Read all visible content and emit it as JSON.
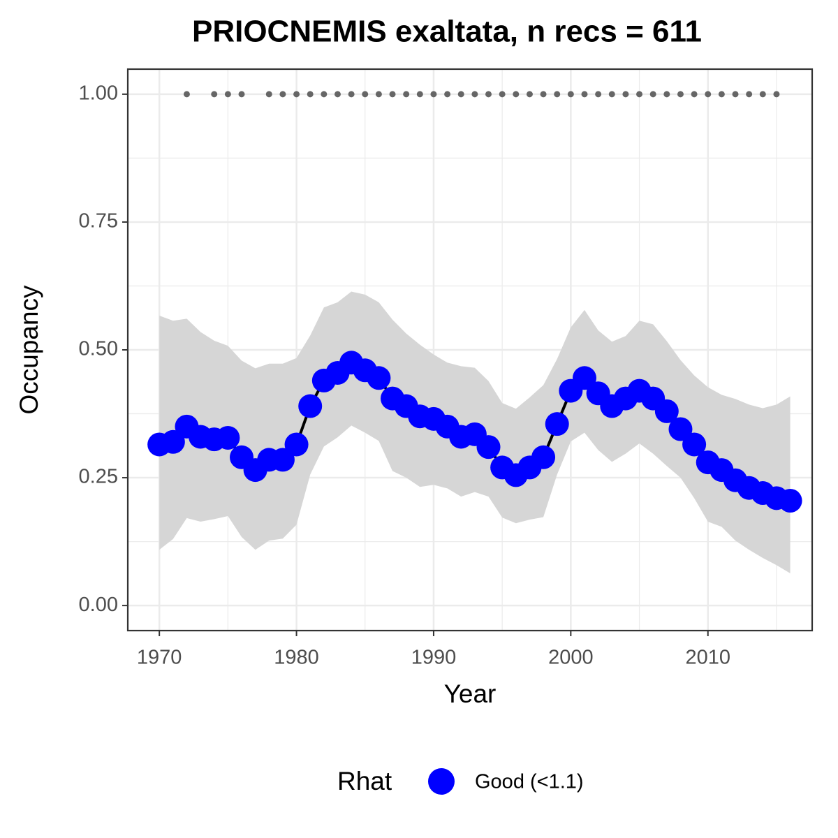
{
  "chart_data": {
    "type": "line",
    "title": "PRIOCNEMIS exaltata, n recs = 611",
    "x_label": "Year",
    "y_label": "Occupancy",
    "legend_title": "Rhat",
    "legend_position": "bottom",
    "grid": true,
    "band_color": "#d6d6d6",
    "line_color": "#000000",
    "x": [
      1970,
      1971,
      1972,
      1973,
      1974,
      1975,
      1976,
      1977,
      1978,
      1979,
      1980,
      1981,
      1982,
      1983,
      1984,
      1985,
      1986,
      1987,
      1988,
      1989,
      1990,
      1991,
      1992,
      1993,
      1994,
      1995,
      1996,
      1997,
      1998,
      1999,
      2000,
      2001,
      2002,
      2003,
      2004,
      2005,
      2006,
      2007,
      2008,
      2009,
      2010,
      2011,
      2012,
      2013,
      2014,
      2015,
      2016
    ],
    "series": [
      {
        "name": "Good (<1.1)",
        "color": "#0000ff",
        "values": [
          0.315,
          0.32,
          0.35,
          0.33,
          0.325,
          0.328,
          0.29,
          0.265,
          0.285,
          0.285,
          0.315,
          0.39,
          0.44,
          0.455,
          0.475,
          0.46,
          0.445,
          0.405,
          0.39,
          0.37,
          0.365,
          0.35,
          0.33,
          0.335,
          0.31,
          0.27,
          0.255,
          0.27,
          0.29,
          0.355,
          0.42,
          0.445,
          0.415,
          0.39,
          0.405,
          0.42,
          0.405,
          0.38,
          0.345,
          0.315,
          0.28,
          0.265,
          0.245,
          0.23,
          0.22,
          0.21,
          0.205
        ],
        "upper": [
          0.567,
          0.557,
          0.561,
          0.535,
          0.518,
          0.508,
          0.479,
          0.464,
          0.473,
          0.473,
          0.484,
          0.528,
          0.583,
          0.593,
          0.614,
          0.608,
          0.593,
          0.559,
          0.532,
          0.51,
          0.491,
          0.475,
          0.468,
          0.465,
          0.439,
          0.396,
          0.385,
          0.407,
          0.431,
          0.482,
          0.544,
          0.578,
          0.538,
          0.516,
          0.527,
          0.557,
          0.55,
          0.517,
          0.48,
          0.45,
          0.427,
          0.412,
          0.404,
          0.393,
          0.386,
          0.393,
          0.409
        ],
        "lower": [
          0.109,
          0.13,
          0.171,
          0.164,
          0.169,
          0.175,
          0.134,
          0.109,
          0.127,
          0.131,
          0.158,
          0.256,
          0.311,
          0.329,
          0.352,
          0.338,
          0.322,
          0.263,
          0.25,
          0.232,
          0.236,
          0.229,
          0.213,
          0.222,
          0.213,
          0.172,
          0.161,
          0.168,
          0.173,
          0.256,
          0.321,
          0.338,
          0.304,
          0.281,
          0.297,
          0.317,
          0.297,
          0.273,
          0.25,
          0.21,
          0.164,
          0.154,
          0.127,
          0.109,
          0.093,
          0.079,
          0.063
        ]
      }
    ],
    "records": {
      "color": "#666666",
      "x": [
        1972,
        1974,
        1975,
        1976,
        1978,
        1979,
        1980,
        1981,
        1982,
        1983,
        1984,
        1985,
        1986,
        1987,
        1988,
        1989,
        1990,
        1991,
        1992,
        1993,
        1994,
        1995,
        1996,
        1997,
        1998,
        1999,
        2000,
        2001,
        2002,
        2003,
        2004,
        2005,
        2006,
        2007,
        2008,
        2009,
        2010,
        2011,
        2012,
        2013,
        2014,
        2015
      ],
      "values": [
        1,
        1,
        1,
        1,
        1,
        1,
        1,
        1,
        1,
        1,
        1,
        1,
        1,
        1,
        1,
        1,
        1,
        1,
        1,
        1,
        1,
        1,
        1,
        1,
        1,
        1,
        1,
        1,
        1,
        1,
        1,
        1,
        1,
        1,
        1,
        1,
        1,
        1,
        1,
        1,
        1,
        1
      ]
    },
    "xlim": [
      1967.7,
      2017.6
    ],
    "ylim": [
      -0.049,
      1.049
    ],
    "xticks": [
      1970,
      1980,
      1990,
      2000,
      2010
    ],
    "yticks": [
      {
        "value": 0,
        "label": "0.00"
      },
      {
        "value": 0.25,
        "label": "0.25"
      },
      {
        "value": 0.5,
        "label": "0.50"
      },
      {
        "value": 0.75,
        "label": "0.75"
      },
      {
        "value": 1,
        "label": "1.00"
      }
    ]
  }
}
